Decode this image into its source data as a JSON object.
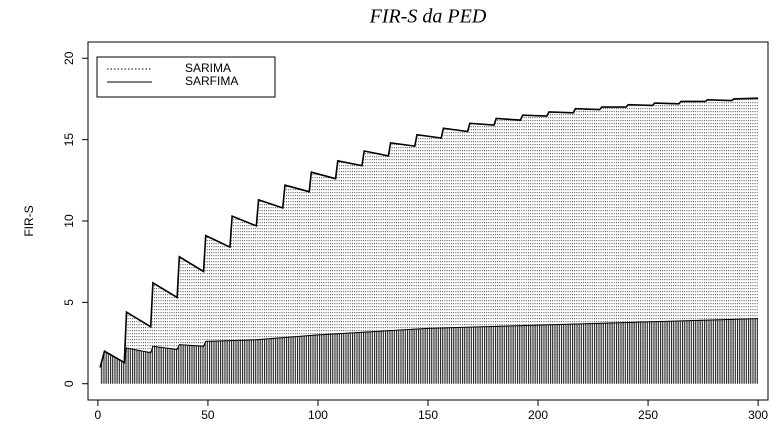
{
  "chart_data": {
    "type": "line",
    "title": "FIR-S da PED",
    "ylabel": "FIR-S",
    "xlim": [
      -4.5,
      304.5
    ],
    "xticks": [
      0,
      50,
      100,
      150,
      200,
      250,
      300
    ],
    "ylim": [
      -1,
      21
    ],
    "yticks": [
      0,
      5,
      10,
      15,
      20
    ],
    "legend": "top-left",
    "series": [
      {
        "name": "SARIMA",
        "color": "#000000",
        "x": [
          1,
          3,
          12,
          13,
          24,
          25,
          36,
          37,
          48,
          49,
          72,
          100,
          150,
          200,
          250,
          300
        ],
        "values": [
          1.0,
          2.0,
          1.3,
          2.2,
          1.9,
          2.3,
          2.1,
          2.4,
          2.3,
          2.6,
          2.7,
          3.0,
          3.4,
          3.6,
          3.8,
          4.0
        ]
      },
      {
        "name": "SARFIMA",
        "color": "#000000",
        "x": [
          1,
          3,
          12,
          13,
          24,
          25,
          36,
          37,
          48,
          49,
          60,
          61,
          72,
          73,
          84,
          85,
          96,
          97,
          108,
          109,
          120,
          121,
          132,
          133,
          144,
          145,
          156,
          157,
          168,
          169,
          180,
          181,
          192,
          193,
          204,
          205,
          216,
          217,
          228,
          229,
          240,
          241,
          252,
          253,
          264,
          265,
          276,
          277,
          288,
          289,
          300
        ],
        "values": [
          1.0,
          2.0,
          1.3,
          4.4,
          3.5,
          6.2,
          5.3,
          7.8,
          6.9,
          9.1,
          8.4,
          10.3,
          9.7,
          11.3,
          10.8,
          12.2,
          11.8,
          13.0,
          12.6,
          13.7,
          13.4,
          14.3,
          14.0,
          14.8,
          14.6,
          15.3,
          15.1,
          15.7,
          15.5,
          16.0,
          15.9,
          16.3,
          16.2,
          16.5,
          16.45,
          16.7,
          16.65,
          16.9,
          16.85,
          17.0,
          17.0,
          17.15,
          17.1,
          17.25,
          17.2,
          17.35,
          17.35,
          17.45,
          17.4,
          17.5,
          17.55
        ]
      }
    ]
  }
}
